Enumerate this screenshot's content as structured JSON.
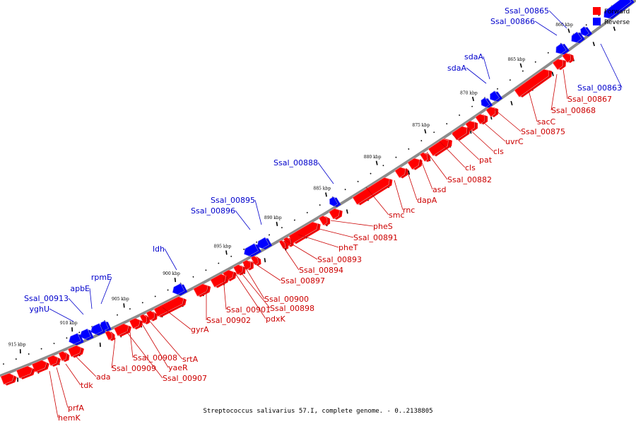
{
  "caption": "Streptococcus salivarius 57.I, complete genome. - 0..2138805",
  "legend": {
    "forward_label": "Forward",
    "reverse_label": "Reverse",
    "forward_color": "#ff0000",
    "reverse_color": "#0000ff"
  },
  "colors": {
    "forward": "#ff0000",
    "forward_dark": "#a00000",
    "forward_light": "#ff9a9a",
    "reverse": "#0000ff",
    "reverse_dark": "#00008c",
    "reverse_light": "#8c8cff",
    "backbone": "#8c8c8c"
  },
  "tick_labels": [
    "860 kbp",
    "865 kbp",
    "870 kbp",
    "875 kbp",
    "880 kbp",
    "885 kbp",
    "890 kbp",
    "895 kbp",
    "900 kbp",
    "905 kbp",
    "910 kbp",
    "915 kbp"
  ],
  "forward_labels": [
    "Ssal_00867",
    "Ssal_00868",
    "sacC",
    "Ssal_00875",
    "uvrC",
    "cls",
    "pat",
    "cls",
    "Ssal_00882",
    "asd",
    "dapA",
    "rnc",
    "smc",
    "pheS",
    "Ssal_00891",
    "pheT",
    "Ssal_00893",
    "Ssal_00894",
    "Ssal_00897",
    "Ssal_00900",
    "Ssal_00898",
    "pdxK",
    "Ssal_00901",
    "Ssal_00902",
    "gyrA",
    "srtA",
    "yaeR",
    "Ssal_00908",
    "Ssal_00909",
    "Ssal_00907",
    "ada",
    "tdk",
    "prfA",
    "hemK"
  ],
  "reverse_labels": [
    "Ssal_00865",
    "Ssal_00866",
    "Ssal_00863",
    "sdaA",
    "sdaA",
    "Ssal_00888",
    "Ssal_00895",
    "Ssal_00896",
    "ldh",
    "rpmE",
    "apbE",
    "Ssal_00913",
    "yghU"
  ]
}
